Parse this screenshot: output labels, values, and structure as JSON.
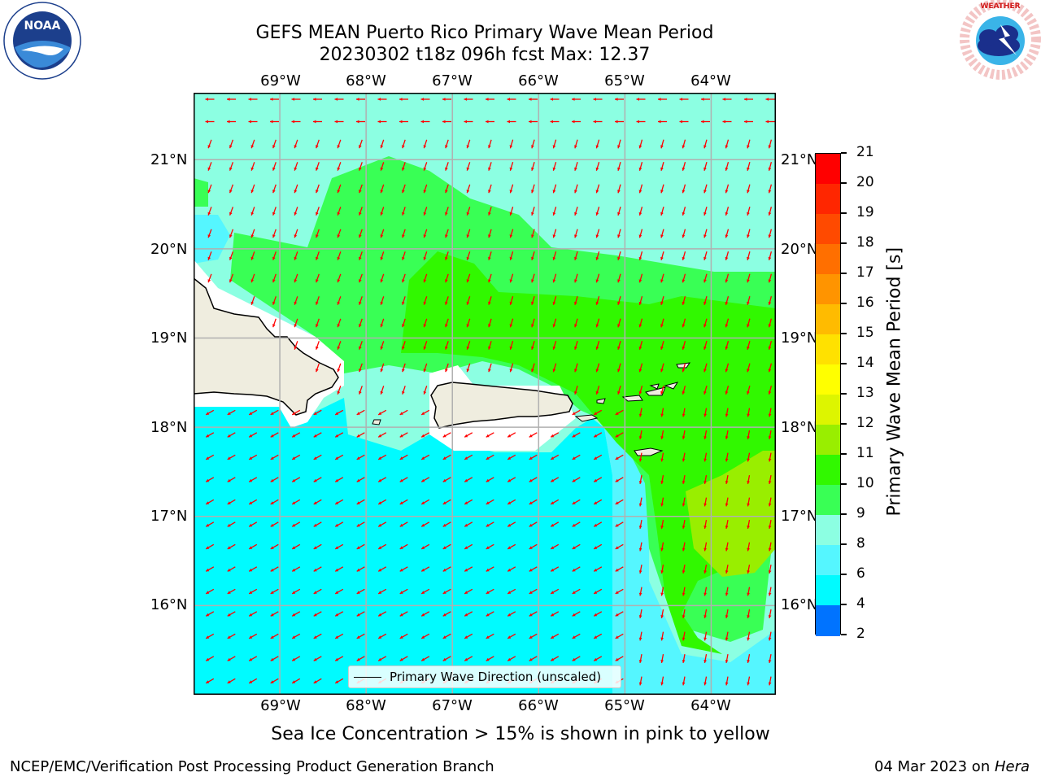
{
  "title": {
    "line1": "GEFS MEAN Puerto Rico Primary Wave Mean Period",
    "line2": "20230302 t18z 096h fcst   Max: 12.37"
  },
  "logos": {
    "left": {
      "name": "noaa-logo",
      "text": "NOAA",
      "ring_text": "NATIONAL OCEANIC AND ATMOSPHERIC ADMINISTRATION · U.S. DEPARTMENT OF COMMERCE"
    },
    "right": {
      "name": "nws-logo",
      "ring_text": "NATIONAL WEATHER SERVICE"
    }
  },
  "map": {
    "lon_labels": [
      "69°W",
      "68°W",
      "67°W",
      "66°W",
      "65°W",
      "64°W"
    ],
    "lat_labels": [
      "21°N",
      "20°N",
      "19°N",
      "18°N",
      "17°N",
      "16°N"
    ],
    "lon_range": [
      -70.0,
      -63.25
    ],
    "lat_range": [
      15.0,
      21.75
    ],
    "gridlines": true,
    "arrow_color": "#ff0000",
    "land_color": "#efeddf",
    "colors": {
      "level_8_9": "#55f6ff",
      "level_6_8": "#00fbff",
      "level_9_10": "#8cffe2",
      "level_10_11": "#39ff55",
      "level_11_12": "#31f800",
      "level_12_13": "#99ee00"
    }
  },
  "legend": {
    "label": "Primary Wave Direction (unscaled)"
  },
  "colorbar": {
    "title": "Primary Wave Mean Period [s]",
    "ticks": [
      "21",
      "20",
      "19",
      "18",
      "17",
      "16",
      "15",
      "14",
      "13",
      "12",
      "11",
      "10",
      "9",
      "8",
      "6",
      "4",
      "2"
    ],
    "colors": [
      "#ff0000",
      "#ff2600",
      "#ff4a00",
      "#ff6f00",
      "#ff9400",
      "#ffbb00",
      "#ffe100",
      "#ffff00",
      "#ddf500",
      "#99ee00",
      "#31f800",
      "#39ff55",
      "#8cffe2",
      "#55f6ff",
      "#00fbff",
      "#0073ff",
      "#0000ff"
    ]
  },
  "subtitle": "Sea Ice Concentration > 15% is shown in pink to yellow",
  "footer": {
    "left": "NCEP/EMC/Verification Post Processing Product Generation Branch",
    "date": "04 Mar 2023 on ",
    "machine": "Hera"
  }
}
